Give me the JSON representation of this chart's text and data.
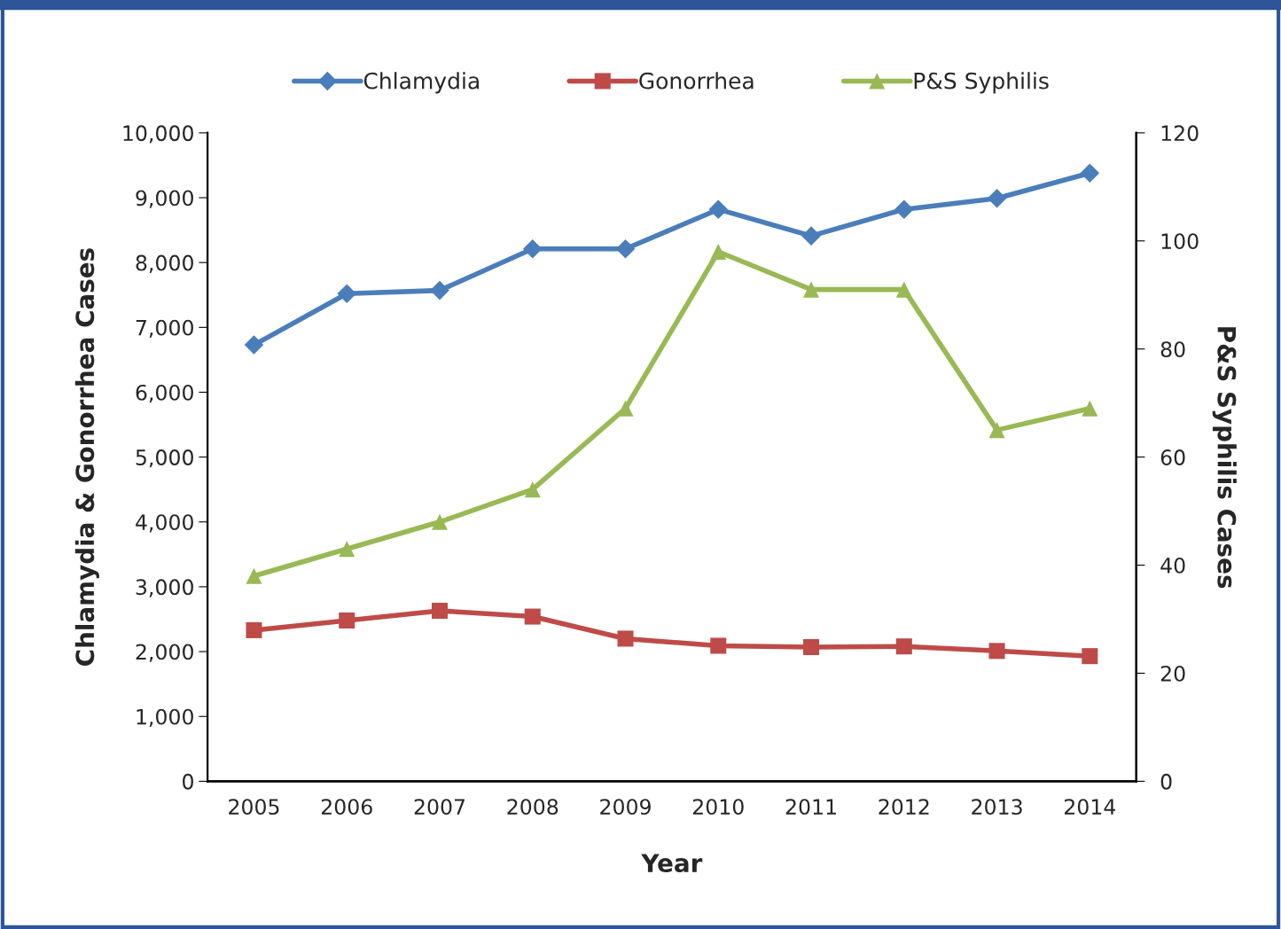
{
  "chart_data": {
    "type": "line",
    "xlabel": "Year",
    "ylabel": "Chlamydia & Gonorrhea Cases",
    "y2label": "P&S Syphilis Cases",
    "categories": [
      "2005",
      "2006",
      "2007",
      "2008",
      "2009",
      "2010",
      "2011",
      "2012",
      "2013",
      "2014"
    ],
    "series": [
      {
        "name": "Chlamydia",
        "color": "#4a7ebb",
        "marker": "diamond",
        "values": [
          6730,
          7520,
          7570,
          8210,
          8210,
          8820,
          8410,
          8820,
          8990,
          9380
        ]
      },
      {
        "name": "Gonorrhea",
        "color": "#be4b48",
        "marker": "square",
        "values": [
          2330,
          2480,
          2630,
          2540,
          2200,
          2090,
          2070,
          2080,
          2010,
          1930
        ]
      },
      {
        "name": "P&S Syphilis",
        "color": "#98b954",
        "marker": "triangle",
        "axis": "y2",
        "values": [
          38,
          43,
          48,
          54,
          69,
          98,
          91,
          91,
          65,
          69
        ]
      }
    ],
    "ylim": [
      0,
      10000
    ],
    "yticks": [
      {
        "value": 0,
        "label": "0"
      },
      {
        "value": 1000,
        "label": "1,000"
      },
      {
        "value": 2000,
        "label": "2,000"
      },
      {
        "value": 3000,
        "label": "3,000"
      },
      {
        "value": 4000,
        "label": "4,000"
      },
      {
        "value": 5000,
        "label": "5,000"
      },
      {
        "value": 6000,
        "label": "6,000"
      },
      {
        "value": 7000,
        "label": "7,000"
      },
      {
        "value": 8000,
        "label": "8,000"
      },
      {
        "value": 9000,
        "label": "9,000"
      },
      {
        "value": 10000,
        "label": "10,000"
      }
    ],
    "y2lim": [
      0,
      120
    ],
    "y2ticks": [
      0,
      20,
      40,
      60,
      80,
      100,
      120
    ],
    "legend": "top",
    "grid": false
  }
}
